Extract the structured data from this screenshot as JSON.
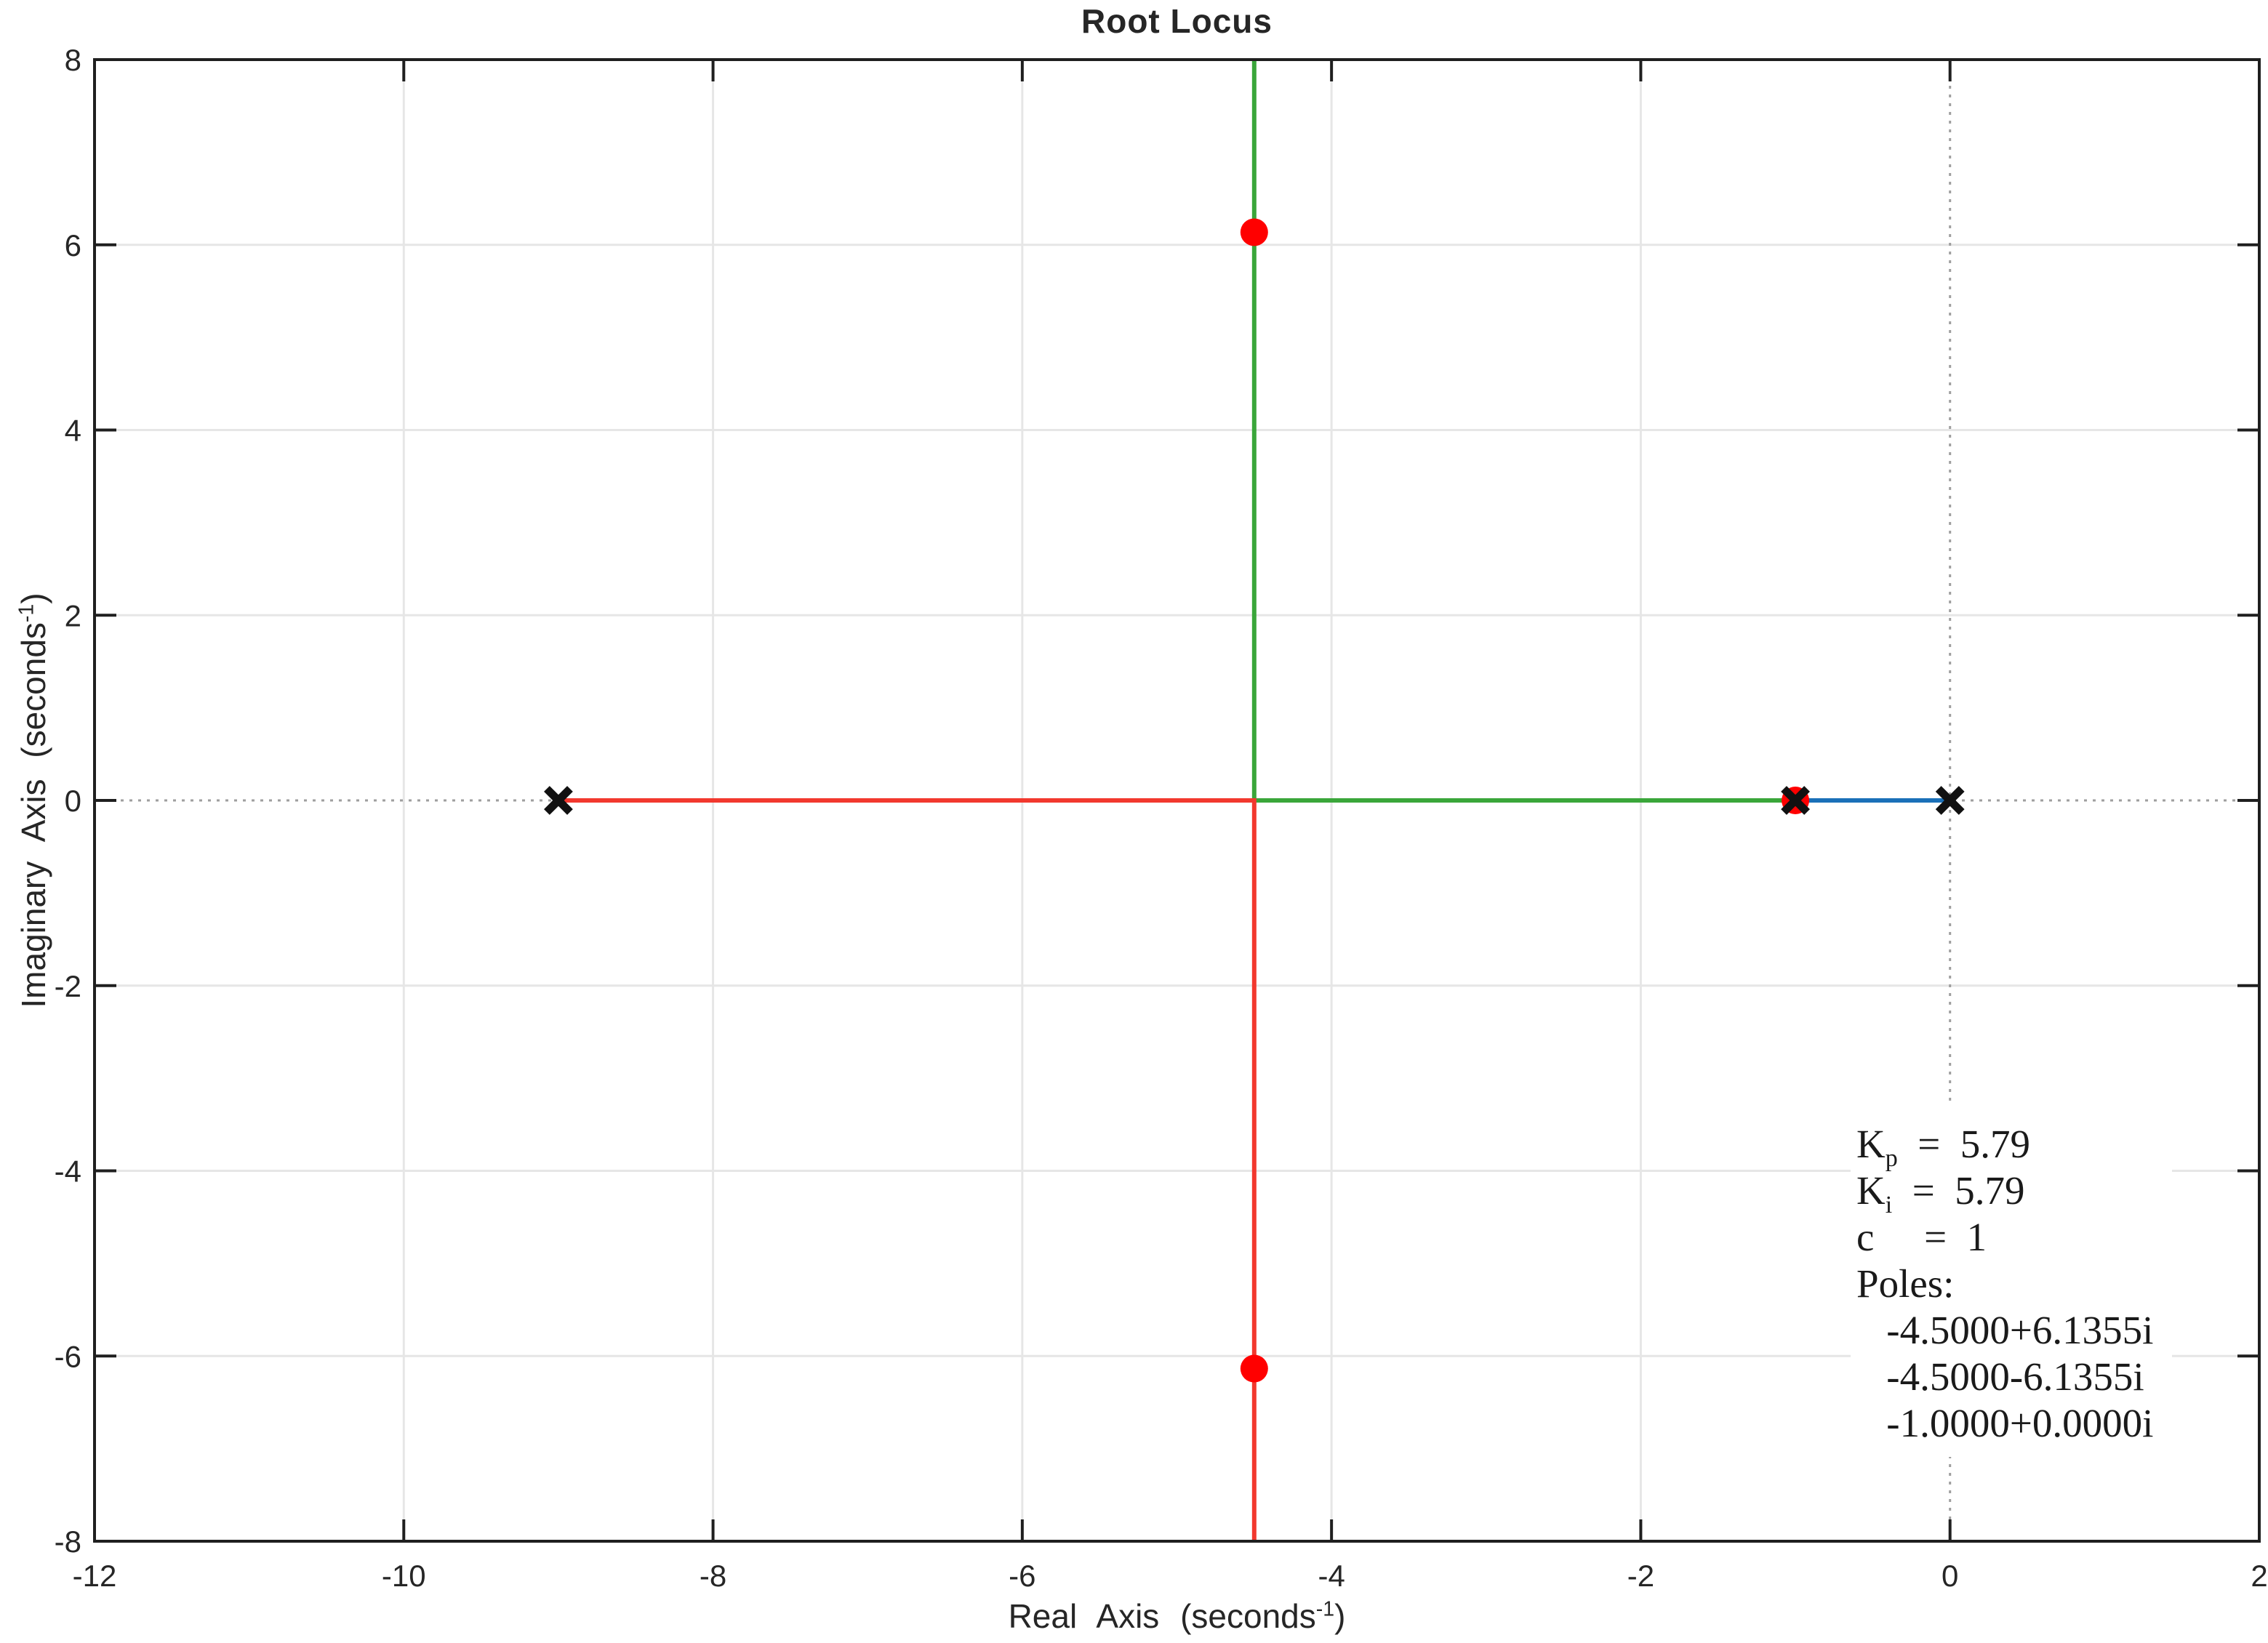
{
  "chart_data": {
    "type": "line",
    "title": "Root Locus",
    "xlabel": "Real Axis (seconds^-1)",
    "ylabel": "Imaginary Axis (seconds^-1)",
    "xlim": [
      -12,
      2
    ],
    "ylim": [
      -8,
      8
    ],
    "xticks": [
      -12,
      -10,
      -8,
      -6,
      -4,
      -2,
      0,
      2
    ],
    "yticks": [
      -8,
      -6,
      -4,
      -2,
      0,
      2,
      4,
      6,
      8
    ],
    "grid": true,
    "legend": "none",
    "zero_axis_lines": {
      "x": 0,
      "y": 0
    },
    "series": [
      {
        "name": "locus-branch-blue",
        "color": "#1a70b8",
        "points": [
          [
            0,
            0
          ],
          [
            -1,
            0
          ]
        ]
      },
      {
        "name": "locus-branch-green",
        "color": "#3aa63a",
        "points": [
          [
            -1,
            0
          ],
          [
            -4.5,
            0
          ],
          [
            -4.5,
            8
          ]
        ]
      },
      {
        "name": "locus-branch-red",
        "color": "#f2382e",
        "points": [
          [
            -9,
            0
          ],
          [
            -4.5,
            0
          ],
          [
            -4.5,
            -8
          ]
        ]
      }
    ],
    "open_loop_poles": {
      "marker": "x",
      "color": "#111111",
      "points": [
        [
          -9,
          0
        ],
        [
          -1,
          0
        ],
        [
          0,
          0
        ]
      ]
    },
    "closed_loop_poles": {
      "marker": "circle",
      "color": "#ff0000",
      "points": [
        [
          -4.5,
          6.1355
        ],
        [
          -4.5,
          -6.1355
        ],
        [
          -1,
          0
        ]
      ]
    },
    "annotation": {
      "lines": [
        "K_p  =  5.79",
        "K_i  =  5.79",
        "c     =  1",
        "Poles:",
        "   -4.5000+6.1355i",
        "   -4.5000-6.1355i",
        "   -1.0000+0.0000i"
      ],
      "values": {
        "Kp": "5.79",
        "Ki": "5.79",
        "c": "1",
        "poles": [
          "-4.5000+6.1355i",
          "-4.5000-6.1355i",
          "-1.0000+0.0000i"
        ]
      }
    },
    "colors": {
      "grid": "#e6e6e6",
      "zero_line": "#9e9e9e",
      "axis": "#1f1f1f",
      "marker_x": "#111111",
      "marker_dot": "#ff0000"
    }
  }
}
